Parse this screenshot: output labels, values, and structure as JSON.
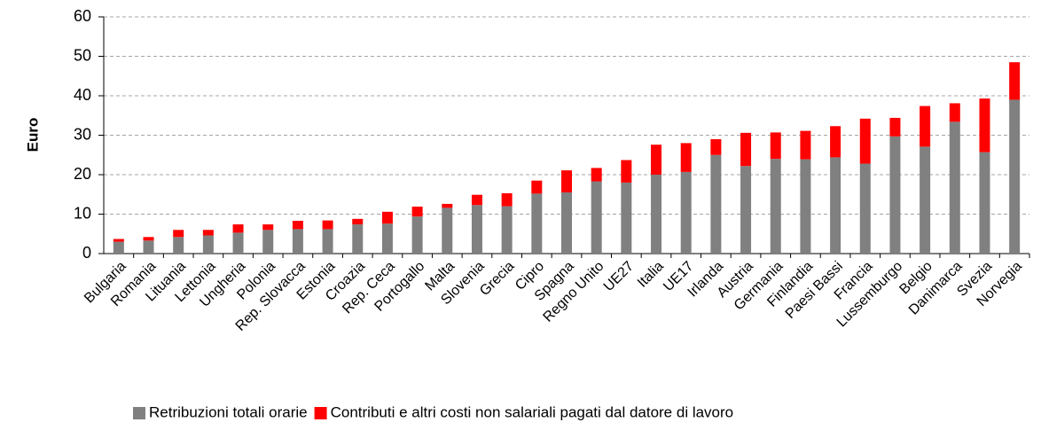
{
  "chart_data": {
    "type": "stacked_bar",
    "y_label": "Euro",
    "categories": [
      "Bulgaria",
      "Romania",
      "Lituania",
      "Lettonia",
      "Ungheria",
      "Polonia",
      "Rep. Slovacca",
      "Estonia",
      "Croazia",
      "Rep. Ceca",
      "Portogallo",
      "Malta",
      "Slovenia",
      "Grecia",
      "Cipro",
      "Spagna",
      "Regno Unito",
      "UE27",
      "Italia",
      "UE17",
      "Irlanda",
      "Austria",
      "Germania",
      "Finlandia",
      "Paesi Bassi",
      "Francia",
      "Lussemburgo",
      "Belgio",
      "Danimarca",
      "Svezia",
      "Norvegia"
    ],
    "series": [
      {
        "name": "Retribuzioni totali orarie",
        "color": "#808080",
        "values": [
          3.0,
          3.3,
          4.2,
          4.6,
          5.3,
          6.0,
          6.2,
          6.2,
          7.4,
          7.6,
          9.4,
          11.6,
          12.3,
          12.0,
          15.2,
          15.5,
          18.3,
          18.0,
          20.0,
          20.7,
          25.0,
          22.2,
          24.0,
          23.9,
          24.4,
          22.8,
          29.7,
          27.1,
          33.4,
          25.7,
          39.0
        ]
      },
      {
        "name": "Contributi e altri costi non salariali pagati dal datore di lavoro",
        "color": "#ff0000",
        "values": [
          0.7,
          0.9,
          1.8,
          1.4,
          2.1,
          1.4,
          2.1,
          2.2,
          1.4,
          3.0,
          2.5,
          1.0,
          2.6,
          3.3,
          3.3,
          5.6,
          3.4,
          5.7,
          7.6,
          7.3,
          4.0,
          8.4,
          6.7,
          7.2,
          7.9,
          11.4,
          4.7,
          10.3,
          4.7,
          13.6,
          9.5
        ]
      }
    ],
    "ylim": [
      0,
      60
    ],
    "yticks": [
      0,
      10,
      20,
      30,
      40,
      50,
      60
    ],
    "grid": true,
    "legend": "bottom"
  }
}
